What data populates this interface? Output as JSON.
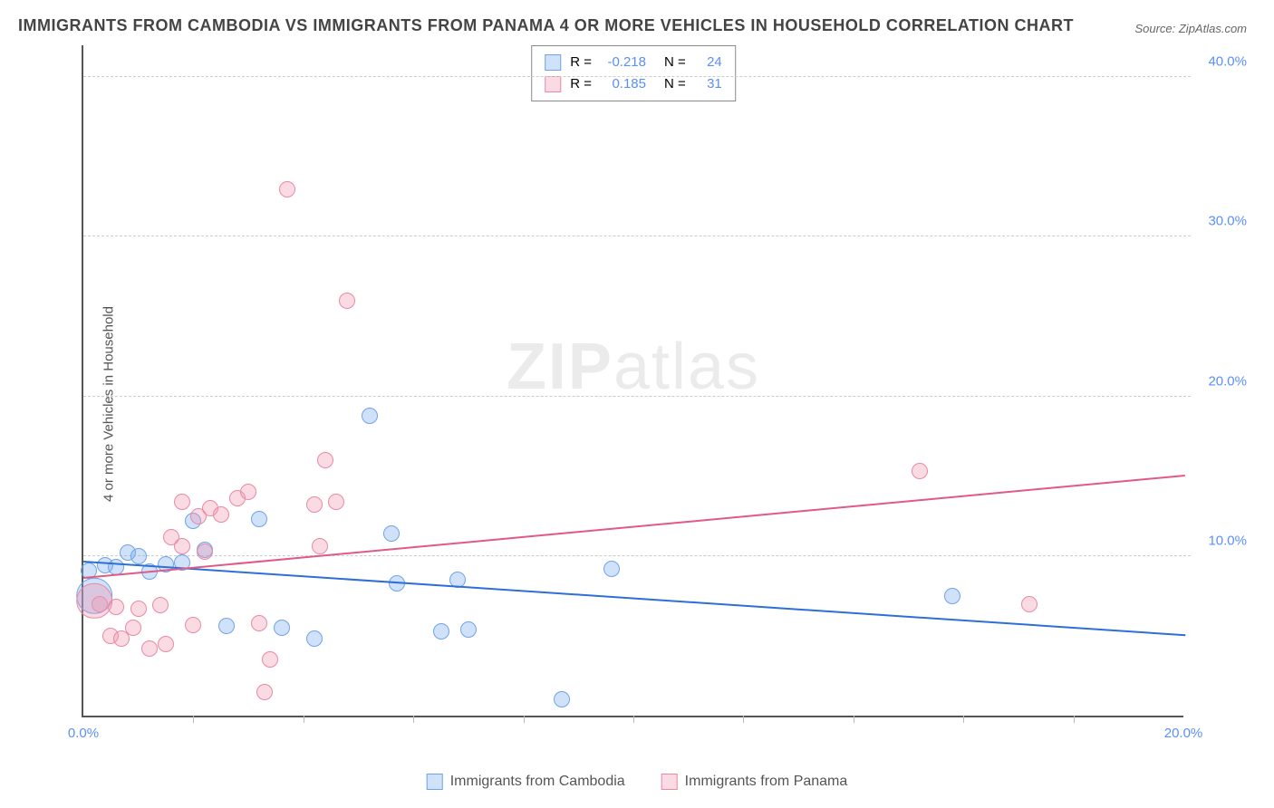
{
  "title": "IMMIGRANTS FROM CAMBODIA VS IMMIGRANTS FROM PANAMA 4 OR MORE VEHICLES IN HOUSEHOLD CORRELATION CHART",
  "source": "Source: ZipAtlas.com",
  "y_axis_label": "4 or more Vehicles in Household",
  "watermark_bold": "ZIP",
  "watermark_rest": "atlas",
  "chart": {
    "type": "scatter",
    "xlim": [
      0,
      20
    ],
    "ylim": [
      0,
      42
    ],
    "x_ticks": [
      0.0,
      20.0
    ],
    "x_tick_labels": [
      "0.0%",
      "20.0%"
    ],
    "y_ticks": [
      10.0,
      20.0,
      30.0,
      40.0
    ],
    "y_tick_labels": [
      "10.0%",
      "20.0%",
      "30.0%",
      "40.0%"
    ],
    "minor_x_ticks": [
      2,
      4,
      6,
      8,
      10,
      12,
      14,
      16,
      18
    ],
    "background_color": "#ffffff",
    "grid_color": "#cccccc",
    "axis_color": "#555555",
    "tick_label_color": "#5b8ff9",
    "series": [
      {
        "name": "Immigrants from Cambodia",
        "fill": "rgba(120,170,240,0.35)",
        "stroke": "#6fa3e8",
        "line_color": "#2e6fd6",
        "marker_radius": 9,
        "R": "-0.218",
        "N": "24",
        "trend": {
          "x1": 0,
          "y1": 9.8,
          "x2": 20,
          "y2": 5.2
        },
        "points": [
          {
            "x": 0.1,
            "y": 9.1
          },
          {
            "x": 0.4,
            "y": 9.4
          },
          {
            "x": 0.6,
            "y": 9.3
          },
          {
            "x": 0.8,
            "y": 10.2
          },
          {
            "x": 1.2,
            "y": 9.0
          },
          {
            "x": 1.5,
            "y": 9.5
          },
          {
            "x": 2.0,
            "y": 12.2
          },
          {
            "x": 2.2,
            "y": 10.4
          },
          {
            "x": 2.6,
            "y": 5.6
          },
          {
            "x": 3.2,
            "y": 12.3
          },
          {
            "x": 3.6,
            "y": 5.5
          },
          {
            "x": 4.2,
            "y": 4.8
          },
          {
            "x": 5.2,
            "y": 18.8
          },
          {
            "x": 5.6,
            "y": 11.4
          },
          {
            "x": 5.7,
            "y": 8.3
          },
          {
            "x": 6.5,
            "y": 5.3
          },
          {
            "x": 6.8,
            "y": 8.5
          },
          {
            "x": 7.0,
            "y": 5.4
          },
          {
            "x": 8.7,
            "y": 1.0
          },
          {
            "x": 9.6,
            "y": 9.2
          },
          {
            "x": 15.8,
            "y": 7.5
          },
          {
            "x": 0.2,
            "y": 7.5,
            "big": true
          },
          {
            "x": 1.0,
            "y": 10.0
          },
          {
            "x": 1.8,
            "y": 9.6
          }
        ]
      },
      {
        "name": "Immigrants from Panama",
        "fill": "rgba(240,150,175,0.35)",
        "stroke": "#e88aa5",
        "line_color": "#e05a88",
        "marker_radius": 9,
        "R": "0.185",
        "N": "31",
        "trend": {
          "x1": 0,
          "y1": 8.8,
          "x2": 20,
          "y2": 15.2
        },
        "points": [
          {
            "x": 0.3,
            "y": 7.0
          },
          {
            "x": 0.5,
            "y": 5.0
          },
          {
            "x": 0.6,
            "y": 6.8
          },
          {
            "x": 0.7,
            "y": 4.8
          },
          {
            "x": 0.9,
            "y": 5.5
          },
          {
            "x": 1.0,
            "y": 6.7
          },
          {
            "x": 1.2,
            "y": 4.2
          },
          {
            "x": 1.4,
            "y": 6.9
          },
          {
            "x": 1.5,
            "y": 4.5
          },
          {
            "x": 1.6,
            "y": 11.2
          },
          {
            "x": 1.8,
            "y": 10.6
          },
          {
            "x": 1.8,
            "y": 13.4
          },
          {
            "x": 2.0,
            "y": 5.7
          },
          {
            "x": 2.1,
            "y": 12.5
          },
          {
            "x": 2.2,
            "y": 10.3
          },
          {
            "x": 2.3,
            "y": 13.0
          },
          {
            "x": 2.5,
            "y": 12.6
          },
          {
            "x": 2.8,
            "y": 13.6
          },
          {
            "x": 3.0,
            "y": 14.0
          },
          {
            "x": 3.2,
            "y": 5.8
          },
          {
            "x": 3.3,
            "y": 1.5
          },
          {
            "x": 3.4,
            "y": 3.5
          },
          {
            "x": 3.7,
            "y": 33.0
          },
          {
            "x": 4.2,
            "y": 13.2
          },
          {
            "x": 4.3,
            "y": 10.6
          },
          {
            "x": 4.4,
            "y": 16.0
          },
          {
            "x": 4.6,
            "y": 13.4
          },
          {
            "x": 4.8,
            "y": 26.0
          },
          {
            "x": 15.2,
            "y": 15.3
          },
          {
            "x": 17.2,
            "y": 7.0
          },
          {
            "x": 0.2,
            "y": 7.2,
            "big": true
          }
        ]
      }
    ]
  },
  "stats_legend": {
    "r_label": "R =",
    "n_label": "N ="
  },
  "bottom_legend_labels": [
    "Immigrants from Cambodia",
    "Immigrants from Panama"
  ]
}
